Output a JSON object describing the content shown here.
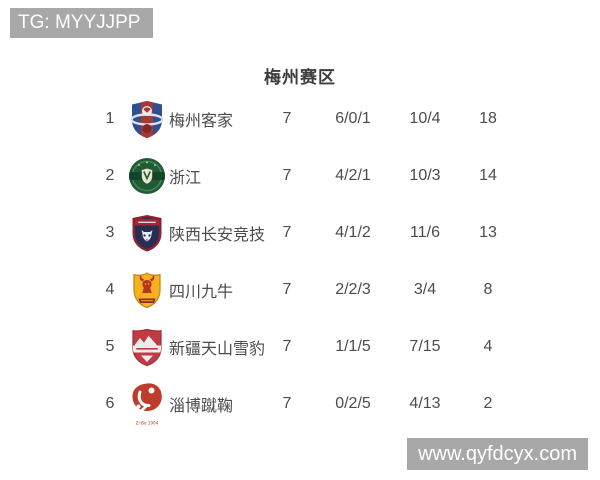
{
  "watermark_top": {
    "label": "TG: MYYJJPP"
  },
  "title": "梅州赛区",
  "table": {
    "rows": [
      {
        "rank": "1",
        "team": "梅州客家",
        "logo_icon": "meizhou-hakka-crest-icon",
        "played": "7",
        "wdl": "6/0/1",
        "goals": "10/4",
        "points": "18"
      },
      {
        "rank": "2",
        "team": "浙江",
        "logo_icon": "zhejiang-crest-icon",
        "played": "7",
        "wdl": "4/2/1",
        "goals": "10/3",
        "points": "14"
      },
      {
        "rank": "3",
        "team": "陕西长安竞技",
        "logo_icon": "shaanxi-changan-crest-icon",
        "played": "7",
        "wdl": "4/1/2",
        "goals": "11/6",
        "points": "13"
      },
      {
        "rank": "4",
        "team": "四川九牛",
        "logo_icon": "sichuan-jiuniu-crest-icon",
        "played": "7",
        "wdl": "2/2/3",
        "goals": "3/4",
        "points": "8"
      },
      {
        "rank": "5",
        "team": "新疆天山雪豹",
        "logo_icon": "xinjiang-tianshan-crest-icon",
        "played": "7",
        "wdl": "1/1/5",
        "goals": "7/15",
        "points": "4"
      },
      {
        "rank": "6",
        "team": "淄博蹴鞠",
        "logo_icon": "zibo-cuju-crest-icon",
        "played": "7",
        "wdl": "0/2/5",
        "goals": "4/13",
        "points": "2",
        "logo_caption": "Zi·Bo·1904"
      }
    ]
  },
  "watermark_bottom": {
    "label": "www.qyfdcyx.com"
  },
  "colors": {
    "watermark_bg": "#a8a8a8",
    "watermark_text": "#ffffff",
    "body_text": "#4c4c4c",
    "title_text": "#3d3d3d",
    "meizhou_blue": "#2e4f92",
    "meizhou_red": "#a93832",
    "zhejiang_green": "#1f5c33",
    "shaanxi_navy": "#262e52",
    "shaanxi_red": "#a32638",
    "sichuan_yellow": "#f4b223",
    "sichuan_red": "#b5371f",
    "xinjiang_red": "#c13a44",
    "zibo_red": "#bf3b2b"
  }
}
